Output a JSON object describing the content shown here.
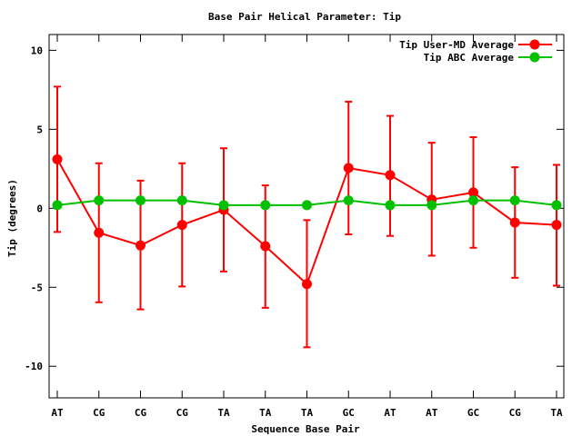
{
  "chart_data": {
    "type": "line",
    "title": "Base Pair Helical Parameter: Tip",
    "xlabel": "Sequence Base Pair",
    "ylabel": "Tip (degrees)",
    "categories": [
      "AT",
      "CG",
      "CG",
      "CG",
      "TA",
      "TA",
      "TA",
      "GC",
      "AT",
      "AT",
      "GC",
      "CG",
      "TA"
    ],
    "ylim": [
      -12,
      11
    ],
    "yticks": [
      -10,
      -5,
      0,
      5,
      10
    ],
    "ytick_labels": [
      "-10",
      "-5",
      "0",
      "5",
      "10"
    ],
    "legend_position": "top-right",
    "series": [
      {
        "name": "Tip User-MD Average",
        "color": "#ff0000",
        "values": [
          3.1,
          -1.55,
          -2.35,
          -1.05,
          -0.1,
          -2.4,
          -4.8,
          2.55,
          2.1,
          0.55,
          1.0,
          -0.9,
          -1.05
        ],
        "err_low": [
          -1.5,
          -5.95,
          -6.4,
          -4.95,
          -4.0,
          -6.3,
          -8.8,
          -1.65,
          -1.75,
          -3.0,
          -2.5,
          -4.4,
          -4.9
        ],
        "err_high": [
          7.7,
          2.85,
          1.75,
          2.85,
          3.8,
          1.45,
          -0.75,
          6.75,
          5.85,
          4.15,
          4.5,
          2.6,
          2.75
        ]
      },
      {
        "name": "Tip ABC Average",
        "color": "#00c000",
        "values": [
          0.2,
          0.5,
          0.5,
          0.5,
          0.2,
          0.2,
          0.2,
          0.5,
          0.2,
          0.2,
          0.5,
          0.5,
          0.2
        ]
      }
    ]
  }
}
